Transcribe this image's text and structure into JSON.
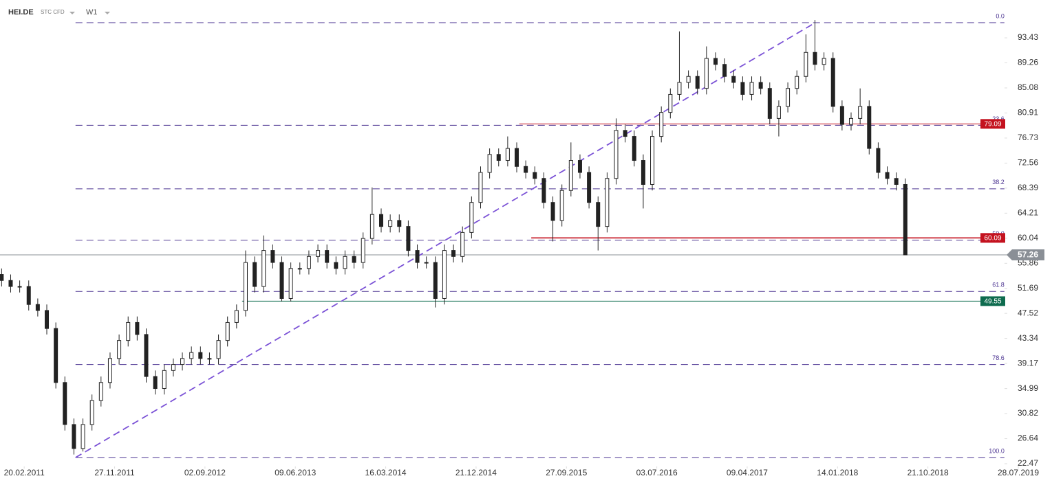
{
  "chart_data": {
    "type": "candlestick",
    "symbol": "HEI.DE",
    "instrument": "STC CFD",
    "timeframe": "W1",
    "x": [
      "12.12.2010",
      "09.01.2011",
      "06.02.2011",
      "06.03.2011",
      "03.04.2011",
      "01.05.2011",
      "29.05.2011",
      "26.06.2011",
      "24.07.2011",
      "21.08.2011",
      "18.09.2011",
      "16.10.2011",
      "13.11.2011",
      "11.12.2011",
      "08.01.2012",
      "05.02.2012",
      "04.03.2012",
      "01.04.2012",
      "29.04.2012",
      "27.05.2012",
      "24.06.2012",
      "22.07.2012",
      "19.08.2012",
      "16.09.2012",
      "14.10.2012",
      "11.11.2012",
      "09.12.2012",
      "06.01.2013",
      "03.02.2013",
      "03.03.2013",
      "31.03.2013",
      "28.04.2013",
      "26.05.2013",
      "23.06.2013",
      "21.07.2013",
      "18.08.2013",
      "15.09.2013",
      "13.10.2013",
      "10.11.2013",
      "08.12.2013",
      "05.01.2014",
      "02.02.2014",
      "02.03.2014",
      "30.03.2014",
      "27.04.2014",
      "25.05.2014",
      "22.06.2014",
      "20.07.2014",
      "17.08.2014",
      "14.09.2014",
      "12.10.2014",
      "09.11.2014",
      "07.12.2014",
      "04.01.2015",
      "01.02.2015",
      "01.03.2015",
      "29.03.2015",
      "26.04.2015",
      "24.05.2015",
      "21.06.2015",
      "19.07.2015",
      "16.08.2015",
      "13.09.2015",
      "11.10.2015",
      "08.11.2015",
      "06.12.2015",
      "03.01.2016",
      "31.01.2016",
      "28.02.2016",
      "27.03.2016",
      "24.04.2016",
      "22.05.2016",
      "19.06.2016",
      "17.07.2016",
      "14.08.2016",
      "11.09.2016",
      "09.10.2016",
      "06.11.2016",
      "04.12.2016",
      "01.01.2017",
      "29.01.2017",
      "26.02.2017",
      "26.03.2017",
      "23.04.2017",
      "21.05.2017",
      "18.06.2017",
      "16.07.2017",
      "13.08.2017",
      "10.09.2017",
      "08.10.2017",
      "05.11.2017",
      "03.12.2017",
      "31.12.2017",
      "28.01.2018",
      "25.02.2018",
      "25.03.2018",
      "22.04.2018",
      "20.05.2018",
      "17.06.2018",
      "15.07.2018",
      "12.08.2018"
    ],
    "open": [
      54,
      53,
      52,
      52,
      49,
      48,
      45,
      36,
      29,
      25,
      29,
      33,
      36,
      40,
      43,
      46,
      44,
      37,
      35,
      38,
      39,
      40,
      41,
      40,
      40,
      43,
      46,
      48,
      56,
      52,
      58,
      56,
      50,
      55,
      55,
      57,
      58,
      56,
      55,
      57,
      56,
      60,
      64,
      62,
      63,
      62,
      58,
      56,
      56,
      50,
      58,
      57,
      61,
      66,
      71,
      74,
      73,
      75,
      72,
      71,
      70,
      66,
      63,
      68,
      73,
      71,
      66,
      62,
      70,
      78,
      77,
      73,
      69,
      77,
      81,
      84,
      86,
      87,
      85,
      90,
      89,
      87,
      86,
      84,
      86,
      85,
      80,
      82,
      85,
      87,
      91,
      89,
      90,
      82,
      79,
      80,
      82,
      75,
      71,
      70,
      69
    ],
    "high": [
      55,
      54,
      53,
      53,
      50,
      49,
      46,
      37,
      30,
      30,
      34,
      37,
      41,
      44,
      47,
      47,
      45,
      38,
      39,
      40,
      41,
      42,
      42,
      41,
      44,
      47,
      49,
      58,
      57,
      60.5,
      59,
      57,
      56,
      56,
      58,
      59,
      59,
      57,
      58,
      58,
      61,
      68.5,
      65,
      64,
      64,
      63,
      59,
      57,
      57,
      59,
      59,
      62,
      67,
      72,
      75,
      75,
      77,
      76,
      73,
      72,
      71,
      67,
      69,
      76,
      74,
      72,
      67,
      71,
      80,
      79,
      78,
      74,
      78,
      82,
      85,
      94.5,
      88,
      88,
      92,
      91,
      90,
      88,
      87,
      87,
      87,
      86,
      83,
      86,
      88,
      94,
      96.4,
      91,
      91,
      83,
      81,
      85,
      83,
      76,
      72,
      71,
      70
    ],
    "low": [
      52,
      51,
      51,
      48,
      47,
      44,
      35,
      28,
      24,
      24.5,
      28,
      32,
      35,
      39,
      42,
      43,
      36,
      34,
      34,
      37,
      38,
      39,
      39,
      39,
      39,
      42,
      45,
      47,
      51,
      51,
      55,
      49.5,
      49.5,
      54,
      54,
      56,
      55,
      54,
      54,
      55,
      55,
      59,
      61,
      61,
      61,
      57,
      55,
      55,
      48.5,
      49,
      56,
      56,
      60,
      65,
      70,
      72,
      72,
      71,
      70,
      69,
      65,
      59.5,
      62,
      67,
      70,
      65,
      58,
      61,
      69,
      76,
      72,
      65,
      68,
      76,
      80,
      83,
      85,
      84,
      84,
      88,
      86,
      85,
      83,
      83,
      84,
      79,
      77,
      81,
      84,
      86,
      88,
      88,
      81,
      78,
      78,
      79,
      74,
      70,
      69,
      68,
      57.26
    ],
    "close": [
      53,
      52,
      52,
      49,
      48,
      45,
      36,
      29,
      25,
      29,
      33,
      36,
      40,
      43,
      46,
      44,
      37,
      35,
      38,
      39,
      40,
      41,
      40,
      40,
      43,
      46,
      48,
      56,
      52,
      58,
      56,
      50,
      55,
      55,
      57,
      58,
      56,
      55,
      57,
      56,
      60,
      64,
      62,
      63,
      62,
      58,
      56,
      56,
      50,
      58,
      57,
      61,
      66,
      71,
      74,
      73,
      75,
      72,
      71,
      70,
      66,
      63,
      68,
      73,
      71,
      66,
      62,
      70,
      78,
      77,
      73,
      69,
      77,
      81,
      84,
      86,
      87,
      85,
      90,
      89,
      87,
      86,
      84,
      86,
      85,
      80,
      82,
      85,
      87,
      91,
      89,
      90,
      82,
      79,
      80,
      82,
      75,
      71,
      70,
      69,
      57.26
    ],
    "up_color": "#ffffff",
    "down_color": "#222222",
    "xlim": [
      "07.12.2010",
      "28.07.2019"
    ],
    "xticks": [
      "20.02.2011",
      "27.11.2011",
      "02.09.2012",
      "09.06.2013",
      "16.03.2014",
      "21.12.2014",
      "27.09.2015",
      "03.07.2016",
      "09.04.2017",
      "14.01.2018",
      "21.10.2018",
      "28.07.2019"
    ],
    "ylim": [
      22.47,
      99.73
    ],
    "yticks": [
      93.43,
      89.26,
      85.08,
      80.91,
      76.73,
      72.56,
      68.39,
      64.21,
      60.04,
      55.86,
      51.69,
      47.52,
      43.34,
      39.17,
      34.99,
      30.82,
      26.64,
      22.47
    ],
    "last_price": {
      "value": 57.26,
      "color": "#8a8f96"
    },
    "levels": [
      {
        "value": 79.09,
        "from": "04.05.2015",
        "color": "#c4121f"
      },
      {
        "value": 60.09,
        "from": "10.06.2015",
        "color": "#c4121f"
      },
      {
        "value": 49.55,
        "from": "26.12.2012",
        "color": "#0e6b4e"
      }
    ],
    "fib": {
      "from": "29.07.2011",
      "to": "15.06.2019",
      "color": "#4a3290",
      "levels": [
        {
          "ratio": "0.0",
          "value": 95.95
        },
        {
          "ratio": "23.6",
          "value": 78.85
        },
        {
          "ratio": "38.2",
          "value": 68.27
        },
        {
          "ratio": "50.0",
          "value": 59.73
        },
        {
          "ratio": "61.8",
          "value": 51.17
        },
        {
          "ratio": "78.6",
          "value": 39.0
        },
        {
          "ratio": "100.0",
          "value": 23.5
        }
      ]
    },
    "trendline": {
      "x": [
        "29.07.2011",
        "06.11.2017"
      ],
      "y": [
        23.5,
        95.95
      ],
      "color": "#7b52d6"
    }
  }
}
